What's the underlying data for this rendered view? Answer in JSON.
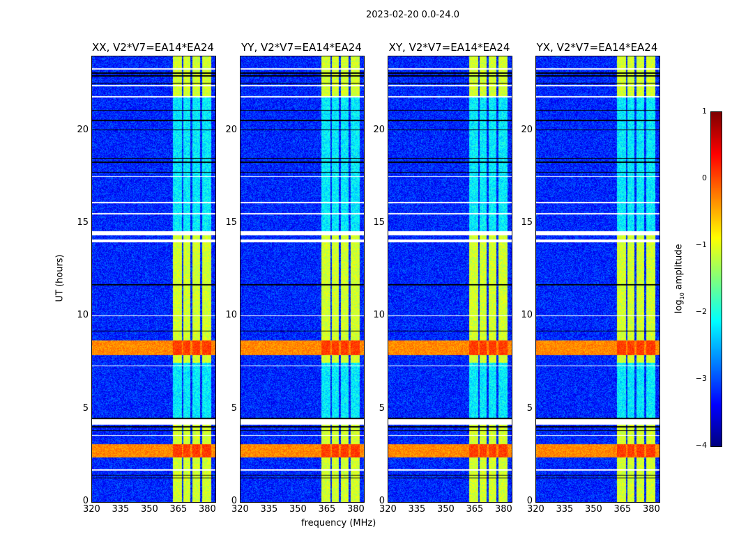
{
  "chart_data": {
    "type": "heatmap",
    "suptitle": "2023-02-20 0.0-24.0",
    "xlabel": "frequency (MHz)",
    "ylabel": "UT (hours)",
    "xlim": [
      320,
      384
    ],
    "ylim": [
      0,
      24
    ],
    "xticks": [
      "320",
      "335",
      "350",
      "365",
      "380"
    ],
    "yticks": [
      "0",
      "5",
      "10",
      "15",
      "20"
    ],
    "panels": [
      {
        "title": "XX, V2*V7=EA14*EA24",
        "seed": 1
      },
      {
        "title": "YY, V2*V7=EA14*EA24",
        "seed": 2
      },
      {
        "title": "XY, V2*V7=EA14*EA24",
        "seed": 3
      },
      {
        "title": "YX, V2*V7=EA14*EA24",
        "seed": 4
      }
    ],
    "colorbar": {
      "label": "log10 amplitude",
      "label_base": "log",
      "label_sub": "10",
      "label_rest": " amplitude",
      "range": [
        -4,
        1
      ],
      "ticks": [
        "1",
        "0",
        "−1",
        "−2",
        "−3",
        "−4"
      ],
      "colormap": "jet"
    },
    "features": {
      "background_level": -3.2,
      "rfi_band_mhz": [
        362,
        382
      ],
      "rfi_gaps_mhz": [
        367,
        371.5,
        376.5
      ],
      "broadband_bursts_hours": [
        [
          2.4,
          3.1
        ],
        [
          7.9,
          8.7
        ]
      ],
      "flagged_white_hours": [
        [
          4.15,
          4.45
        ],
        [
          3.55,
          3.6
        ],
        [
          1.7,
          1.75
        ],
        [
          14.0,
          14.15
        ],
        [
          14.35,
          14.6
        ],
        [
          7.3,
          7.35
        ],
        [
          10.0,
          10.05
        ],
        [
          15.5,
          15.55
        ],
        [
          16.1,
          16.15
        ],
        [
          21.8,
          21.85
        ],
        [
          22.4,
          22.45
        ],
        [
          23.3,
          23.35
        ],
        [
          17.5,
          17.55
        ]
      ],
      "flagged_black_hours": [
        1.3,
        1.45,
        3.85,
        4.05,
        4.5,
        9.2,
        11.7,
        17.75,
        18.3,
        18.5,
        20.05,
        20.55,
        21.1,
        22.55,
        22.95,
        23.1
      ]
    }
  }
}
